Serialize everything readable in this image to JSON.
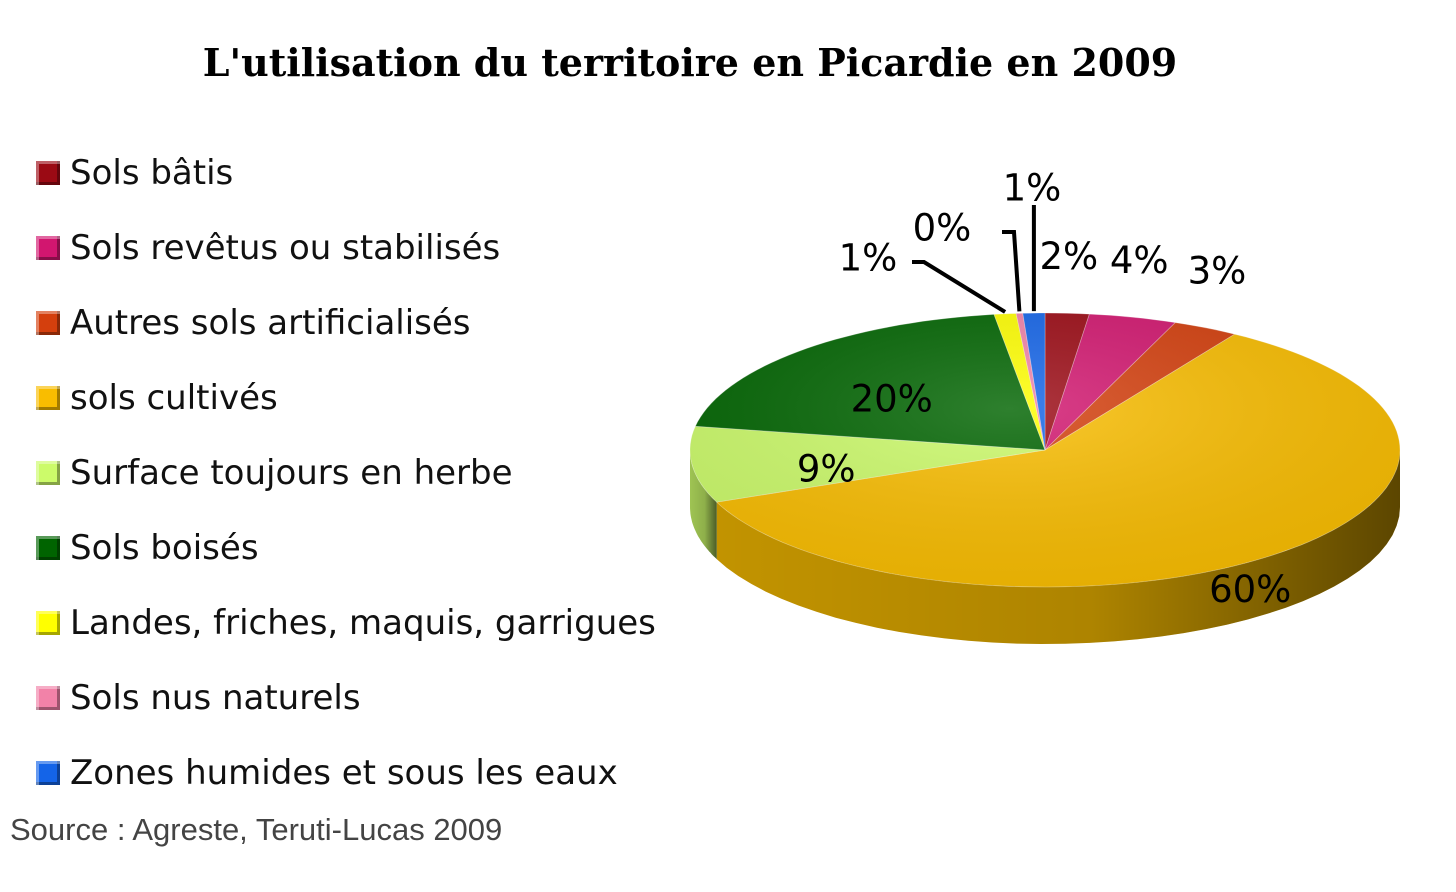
{
  "chart_data": {
    "type": "pie",
    "title": "L'utilisation du territoire en Picardie en 2009",
    "slices": [
      {
        "name": "Sols bâtis",
        "value": 2,
        "label": "2%",
        "color": "#9b0a14"
      },
      {
        "name": "Sols revêtus ou stabilisés",
        "value": 4,
        "label": "4%",
        "color": "#d2166f"
      },
      {
        "name": "Autres sols artificialisés",
        "value": 3,
        "label": "3%",
        "color": "#d43f0d"
      },
      {
        "name": "sols cultivés",
        "value": 60,
        "label": "60%",
        "color": "#f9bd00"
      },
      {
        "name": "Surface toujours en herbe",
        "value": 9,
        "label": "9%",
        "color": "#ccfb6a"
      },
      {
        "name": "Sols boisés",
        "value": 20,
        "label": "20%",
        "color": "#006400"
      },
      {
        "name": "Landes, friches, maquis, garrigues",
        "value": 1,
        "label": "1%",
        "color": "#ffff00"
      },
      {
        "name": "Sols nus naturels",
        "value": 0.3,
        "label": "0%",
        "color": "#f282a8"
      },
      {
        "name": "Zones humides et sous les eaux",
        "value": 1,
        "label": "1%",
        "color": "#1464e8"
      }
    ],
    "legend_position": "left",
    "source": "Source : Agreste, Teruti-Lucas 2009"
  }
}
